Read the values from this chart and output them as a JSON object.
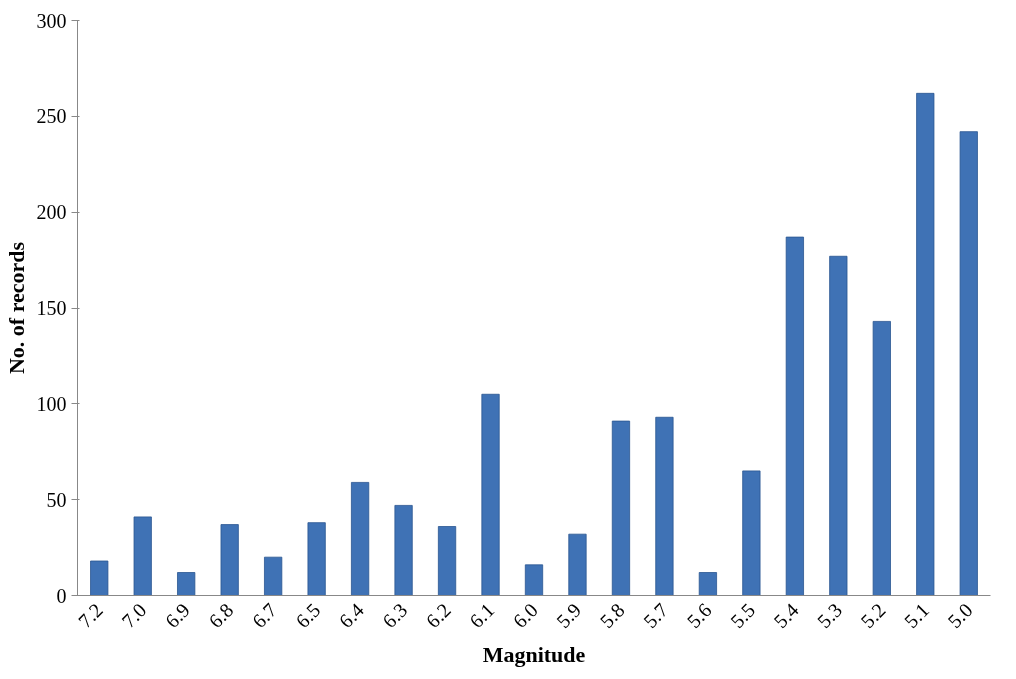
{
  "chart_data": {
    "type": "bar",
    "xlabel": "Magnitude",
    "ylabel": "No. of records",
    "categories": [
      "7.2",
      "7.0",
      "6.9",
      "6.8",
      "6.7",
      "6.5",
      "6.4",
      "6.3",
      "6.2",
      "6.1",
      "6.0",
      "5.9",
      "5.8",
      "5.7",
      "5.6",
      "5.5",
      "5.4",
      "5.3",
      "5.2",
      "5.1",
      "5.0"
    ],
    "values": [
      18,
      41,
      12,
      37,
      20,
      38,
      59,
      47,
      36,
      105,
      16,
      32,
      91,
      93,
      12,
      65,
      187,
      177,
      143,
      262,
      242
    ],
    "color": "#3f72b5",
    "ylim": [
      0,
      300
    ],
    "yticks": [
      0,
      50,
      100,
      150,
      200,
      250,
      300
    ],
    "grid": false
  }
}
